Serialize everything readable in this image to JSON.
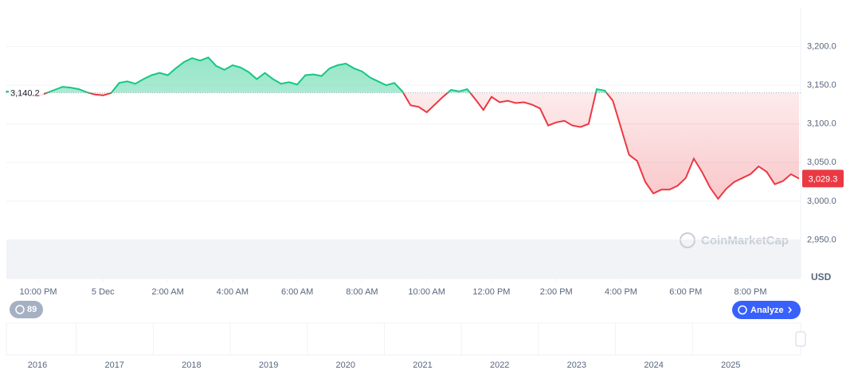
{
  "chart_data": {
    "type": "line",
    "currency_label": "USD",
    "watermark": "CoinMarketCap",
    "baseline": {
      "value": 3140.2,
      "label": "3,140.2"
    },
    "last": {
      "value": 3029.3,
      "label": "3,029.3"
    },
    "ylim": [
      2900,
      3250
    ],
    "yticks": [
      {
        "value": 2950,
        "label": "2,950.0"
      },
      {
        "value": 3000,
        "label": "3,000.0"
      },
      {
        "value": 3050,
        "label": "3,050.0"
      },
      {
        "value": 3100,
        "label": "3,100.0"
      },
      {
        "value": 3150,
        "label": "3,150.0"
      },
      {
        "value": 3200,
        "label": "3,200.0"
      }
    ],
    "xlim": [
      0,
      98
    ],
    "xticks": [
      {
        "value": 4,
        "label": "10:00 PM"
      },
      {
        "value": 12,
        "label": "5 Dec"
      },
      {
        "value": 20,
        "label": "2:00 AM"
      },
      {
        "value": 28,
        "label": "4:00 AM"
      },
      {
        "value": 36,
        "label": "6:00 AM"
      },
      {
        "value": 44,
        "label": "8:00 AM"
      },
      {
        "value": 52,
        "label": "10:00 AM"
      },
      {
        "value": 60,
        "label": "12:00 PM"
      },
      {
        "value": 68,
        "label": "2:00 PM"
      },
      {
        "value": 76,
        "label": "4:00 PM"
      },
      {
        "value": 84,
        "label": "6:00 PM"
      },
      {
        "value": 92,
        "label": "8:00 PM"
      }
    ],
    "grid": true,
    "up_color": "#16c784",
    "down_color": "#ea3943",
    "series": [
      {
        "values": [
          3142,
          3141,
          3139,
          3137,
          3136,
          3140,
          3144,
          3148,
          3147,
          3145,
          3141,
          3138,
          3137,
          3140,
          3153,
          3155,
          3152,
          3158,
          3163,
          3166,
          3163,
          3172,
          3180,
          3185,
          3182,
          3186,
          3175,
          3170,
          3176,
          3173,
          3167,
          3158,
          3166,
          3158,
          3152,
          3154,
          3151,
          3163,
          3164,
          3162,
          3172,
          3176,
          3178,
          3172,
          3168,
          3160,
          3155,
          3150,
          3153,
          3142,
          3124,
          3122,
          3115,
          3125,
          3135,
          3144,
          3142,
          3145,
          3132,
          3118,
          3135,
          3128,
          3130,
          3127,
          3128,
          3125,
          3120,
          3098,
          3102,
          3104,
          3098,
          3096,
          3100,
          3145,
          3143,
          3130,
          3095,
          3060,
          3052,
          3025,
          3010,
          3015,
          3015,
          3020,
          3030,
          3055,
          3038,
          3018,
          3003,
          3016,
          3025,
          3030,
          3035,
          3045,
          3038,
          3022,
          3026,
          3035,
          3029.3
        ]
      }
    ],
    "badge_count": "89",
    "analyze_button": "Analyze",
    "navigator_years": [
      "2016",
      "2017",
      "2018",
      "2019",
      "2020",
      "2021",
      "2022",
      "2023",
      "2024",
      "2025"
    ]
  }
}
